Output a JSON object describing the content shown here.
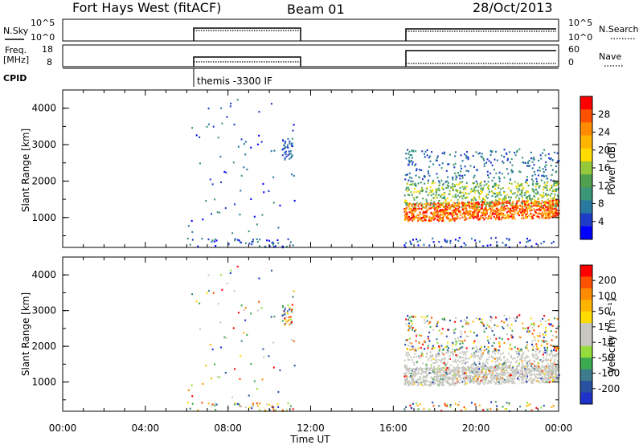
{
  "header": {
    "station": "Fort Hays West (fitACF)",
    "beam": "Beam 01",
    "date": "28/Oct/2013"
  },
  "panels": {
    "nsky": {
      "left_label": "N.Sky",
      "left_ticks": [
        "10^5",
        "10^0"
      ],
      "right_label": "N.Search",
      "right_ticks": [
        "10^5",
        "10^0"
      ]
    },
    "freq": {
      "left_label_1": "Freq.",
      "left_label_2": "[MHz]",
      "left_ticks": [
        "18",
        "8"
      ],
      "right_label": "Nave",
      "right_ticks": [
        "60",
        "0"
      ]
    },
    "cpid": {
      "label": "CPID",
      "program": "themis -3300 IF"
    }
  },
  "axes": {
    "ylabel": "Slant Range [km]",
    "yticks": [
      "1000",
      "2000",
      "3000",
      "4000"
    ],
    "xticks": [
      "00:00",
      "04:00",
      "08:00",
      "12:00",
      "16:00",
      "20:00",
      "00:00"
    ],
    "xlabel": "Time UT"
  },
  "colorbars": {
    "power": {
      "label": "Power [dB]",
      "ticks": [
        "4",
        "8",
        "12",
        "16",
        "20",
        "24",
        "28"
      ],
      "colors": [
        "#0000ff",
        "#1e3cc8",
        "#2878a0",
        "#3c9678",
        "#50a050",
        "#96c83c",
        "#ffdc00",
        "#ffb400",
        "#ff8c00",
        "#ff5000",
        "#ff0000"
      ]
    },
    "velocity": {
      "label": "Velocity [m s⁻¹]",
      "ticks": [
        "200",
        "100",
        "50",
        "15",
        "-15",
        "-50",
        "-100",
        "-200"
      ],
      "colors": [
        "#1e32c8",
        "#2850a0",
        "#3c7c8c",
        "#3caa50",
        "#96dc3c",
        "#c8c8c0",
        "#c8c8c0",
        "#ffdc00",
        "#ffb400",
        "#ff8c00",
        "#ff5000",
        "#ff0000"
      ]
    }
  },
  "chart_data": [
    {
      "type": "heatmap",
      "name": "Power",
      "x_range_hours": [
        0,
        24
      ],
      "y_range_km": [
        180,
        4500
      ],
      "data_windows_hours": [
        [
          6.0,
          11.2
        ],
        [
          16.5,
          24.0
        ]
      ],
      "description": "Range-time power scatter; strongest (20-28 dB) returns near 900-1400 km after 16:30 UT"
    },
    {
      "type": "heatmap",
      "name": "Velocity",
      "x_range_hours": [
        0,
        24
      ],
      "y_range_km": [
        180,
        4500
      ],
      "data_windows_hours": [
        [
          6.0,
          11.2
        ],
        [
          16.5,
          24.0
        ]
      ],
      "description": "Range-time Doppler velocity; mostly near-zero (grey) ground scatter 900-1900 km after 16:30 UT"
    }
  ]
}
